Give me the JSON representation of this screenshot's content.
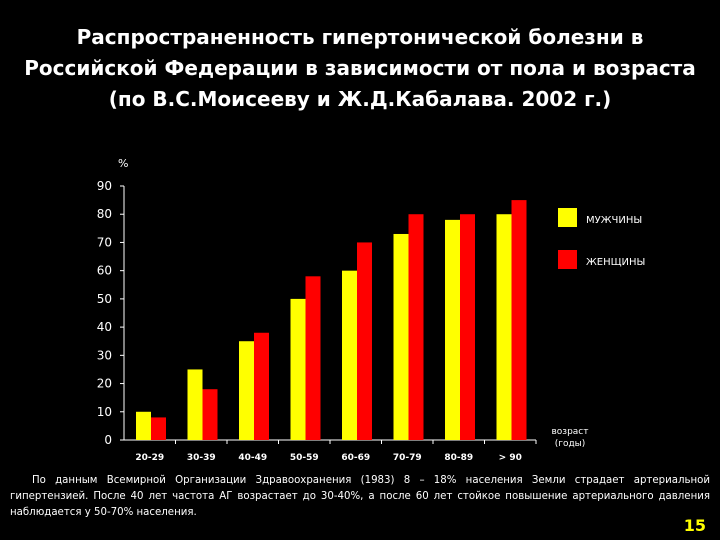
{
  "slide": {
    "title": "Распространенность гипертонической болезни в Российской Федерации в зависимости от пола и возраста (по В.С.Моисееву и Ж.Д.Кабалава. 2002 г.)",
    "footnote": "По данным Всемирной Организации Здравоохранения (1983) 8 – 18% населения Земли страдает артериальной гипертензией. После 40 лет частота АГ возрастает до 30-40%, а после 60 лет стойкое повышение артериального давления наблюдается у 50-70% населения.",
    "page_number": "15"
  },
  "chart_data": {
    "type": "bar",
    "title": "",
    "ylabel": "%",
    "xlabel_lines": [
      "возраст",
      "(годы)"
    ],
    "ylim": [
      0,
      90
    ],
    "yticks": [
      "0",
      "10",
      "20",
      "30",
      "40",
      "50",
      "60",
      "70",
      "80",
      "90"
    ],
    "categories": [
      "20-29",
      "30-39",
      "40-49",
      "50-59",
      "60-69",
      "70-79",
      "80-89",
      "> 90"
    ],
    "series": [
      {
        "name": "МУЖЧИНЫ",
        "color": "#ffff00",
        "values": [
          10,
          25,
          35,
          50,
          60,
          73,
          78,
          80
        ]
      },
      {
        "name": "ЖЕНЩИНЫ",
        "color": "#ff0000",
        "values": [
          8,
          18,
          38,
          58,
          70,
          80,
          80,
          85
        ]
      }
    ],
    "legend_position": "right",
    "grid": false
  }
}
